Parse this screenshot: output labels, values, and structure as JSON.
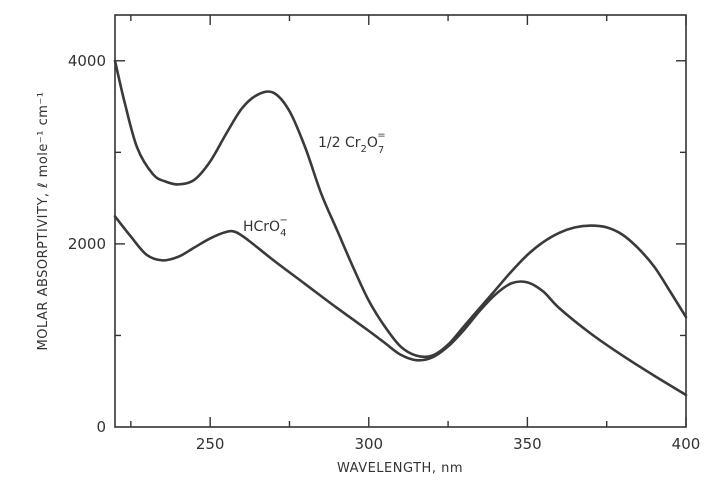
{
  "chart_data": {
    "type": "line",
    "title": "",
    "xlabel": "WAVELENGTH, nm",
    "ylabel": "MOLAR ABSORPTIVITY, ℓ mole⁻¹ cm⁻¹",
    "xlim": [
      220,
      400
    ],
    "ylim": [
      0,
      4500
    ],
    "x_ticks": [
      250,
      300,
      350,
      400
    ],
    "y_ticks": [
      0,
      2000,
      4000
    ],
    "x_minor_ticks": [
      225,
      275,
      325,
      375
    ],
    "y_minor_ticks": [
      1000,
      3000
    ],
    "grid": false,
    "legend": "none",
    "series": [
      {
        "name": "1/2 Cr2O7=",
        "label_parts": {
          "main": "1/2 Cr",
          "sub1": "2",
          "mid": "O",
          "sub2": "7",
          "sup": "="
        },
        "points": [
          [
            220,
            4000
          ],
          [
            223,
            3550
          ],
          [
            227,
            3050
          ],
          [
            232,
            2760
          ],
          [
            236,
            2680
          ],
          [
            240,
            2650
          ],
          [
            245,
            2700
          ],
          [
            250,
            2900
          ],
          [
            255,
            3200
          ],
          [
            260,
            3480
          ],
          [
            265,
            3630
          ],
          [
            270,
            3650
          ],
          [
            275,
            3450
          ],
          [
            280,
            3050
          ],
          [
            285,
            2550
          ],
          [
            290,
            2150
          ],
          [
            295,
            1750
          ],
          [
            300,
            1380
          ],
          [
            305,
            1100
          ],
          [
            310,
            880
          ],
          [
            315,
            780
          ],
          [
            320,
            780
          ],
          [
            325,
            900
          ],
          [
            330,
            1100
          ],
          [
            335,
            1300
          ],
          [
            340,
            1500
          ],
          [
            345,
            1700
          ],
          [
            350,
            1880
          ],
          [
            355,
            2020
          ],
          [
            360,
            2120
          ],
          [
            365,
            2180
          ],
          [
            370,
            2200
          ],
          [
            375,
            2180
          ],
          [
            380,
            2100
          ],
          [
            385,
            1950
          ],
          [
            390,
            1750
          ],
          [
            395,
            1480
          ],
          [
            400,
            1200
          ]
        ]
      },
      {
        "name": "HCrO4-",
        "label_parts": {
          "main": "HCrO",
          "sub": "4",
          "sup": "−"
        },
        "points": [
          [
            220,
            2300
          ],
          [
            225,
            2080
          ],
          [
            230,
            1880
          ],
          [
            235,
            1820
          ],
          [
            240,
            1860
          ],
          [
            245,
            1960
          ],
          [
            250,
            2060
          ],
          [
            255,
            2130
          ],
          [
            258,
            2130
          ],
          [
            262,
            2040
          ],
          [
            270,
            1820
          ],
          [
            280,
            1560
          ],
          [
            290,
            1300
          ],
          [
            300,
            1050
          ],
          [
            305,
            920
          ],
          [
            310,
            790
          ],
          [
            315,
            730
          ],
          [
            320,
            760
          ],
          [
            325,
            880
          ],
          [
            330,
            1060
          ],
          [
            335,
            1270
          ],
          [
            340,
            1450
          ],
          [
            345,
            1570
          ],
          [
            350,
            1580
          ],
          [
            355,
            1480
          ],
          [
            360,
            1300
          ],
          [
            370,
            1020
          ],
          [
            380,
            780
          ],
          [
            390,
            560
          ],
          [
            400,
            350
          ]
        ]
      }
    ]
  }
}
